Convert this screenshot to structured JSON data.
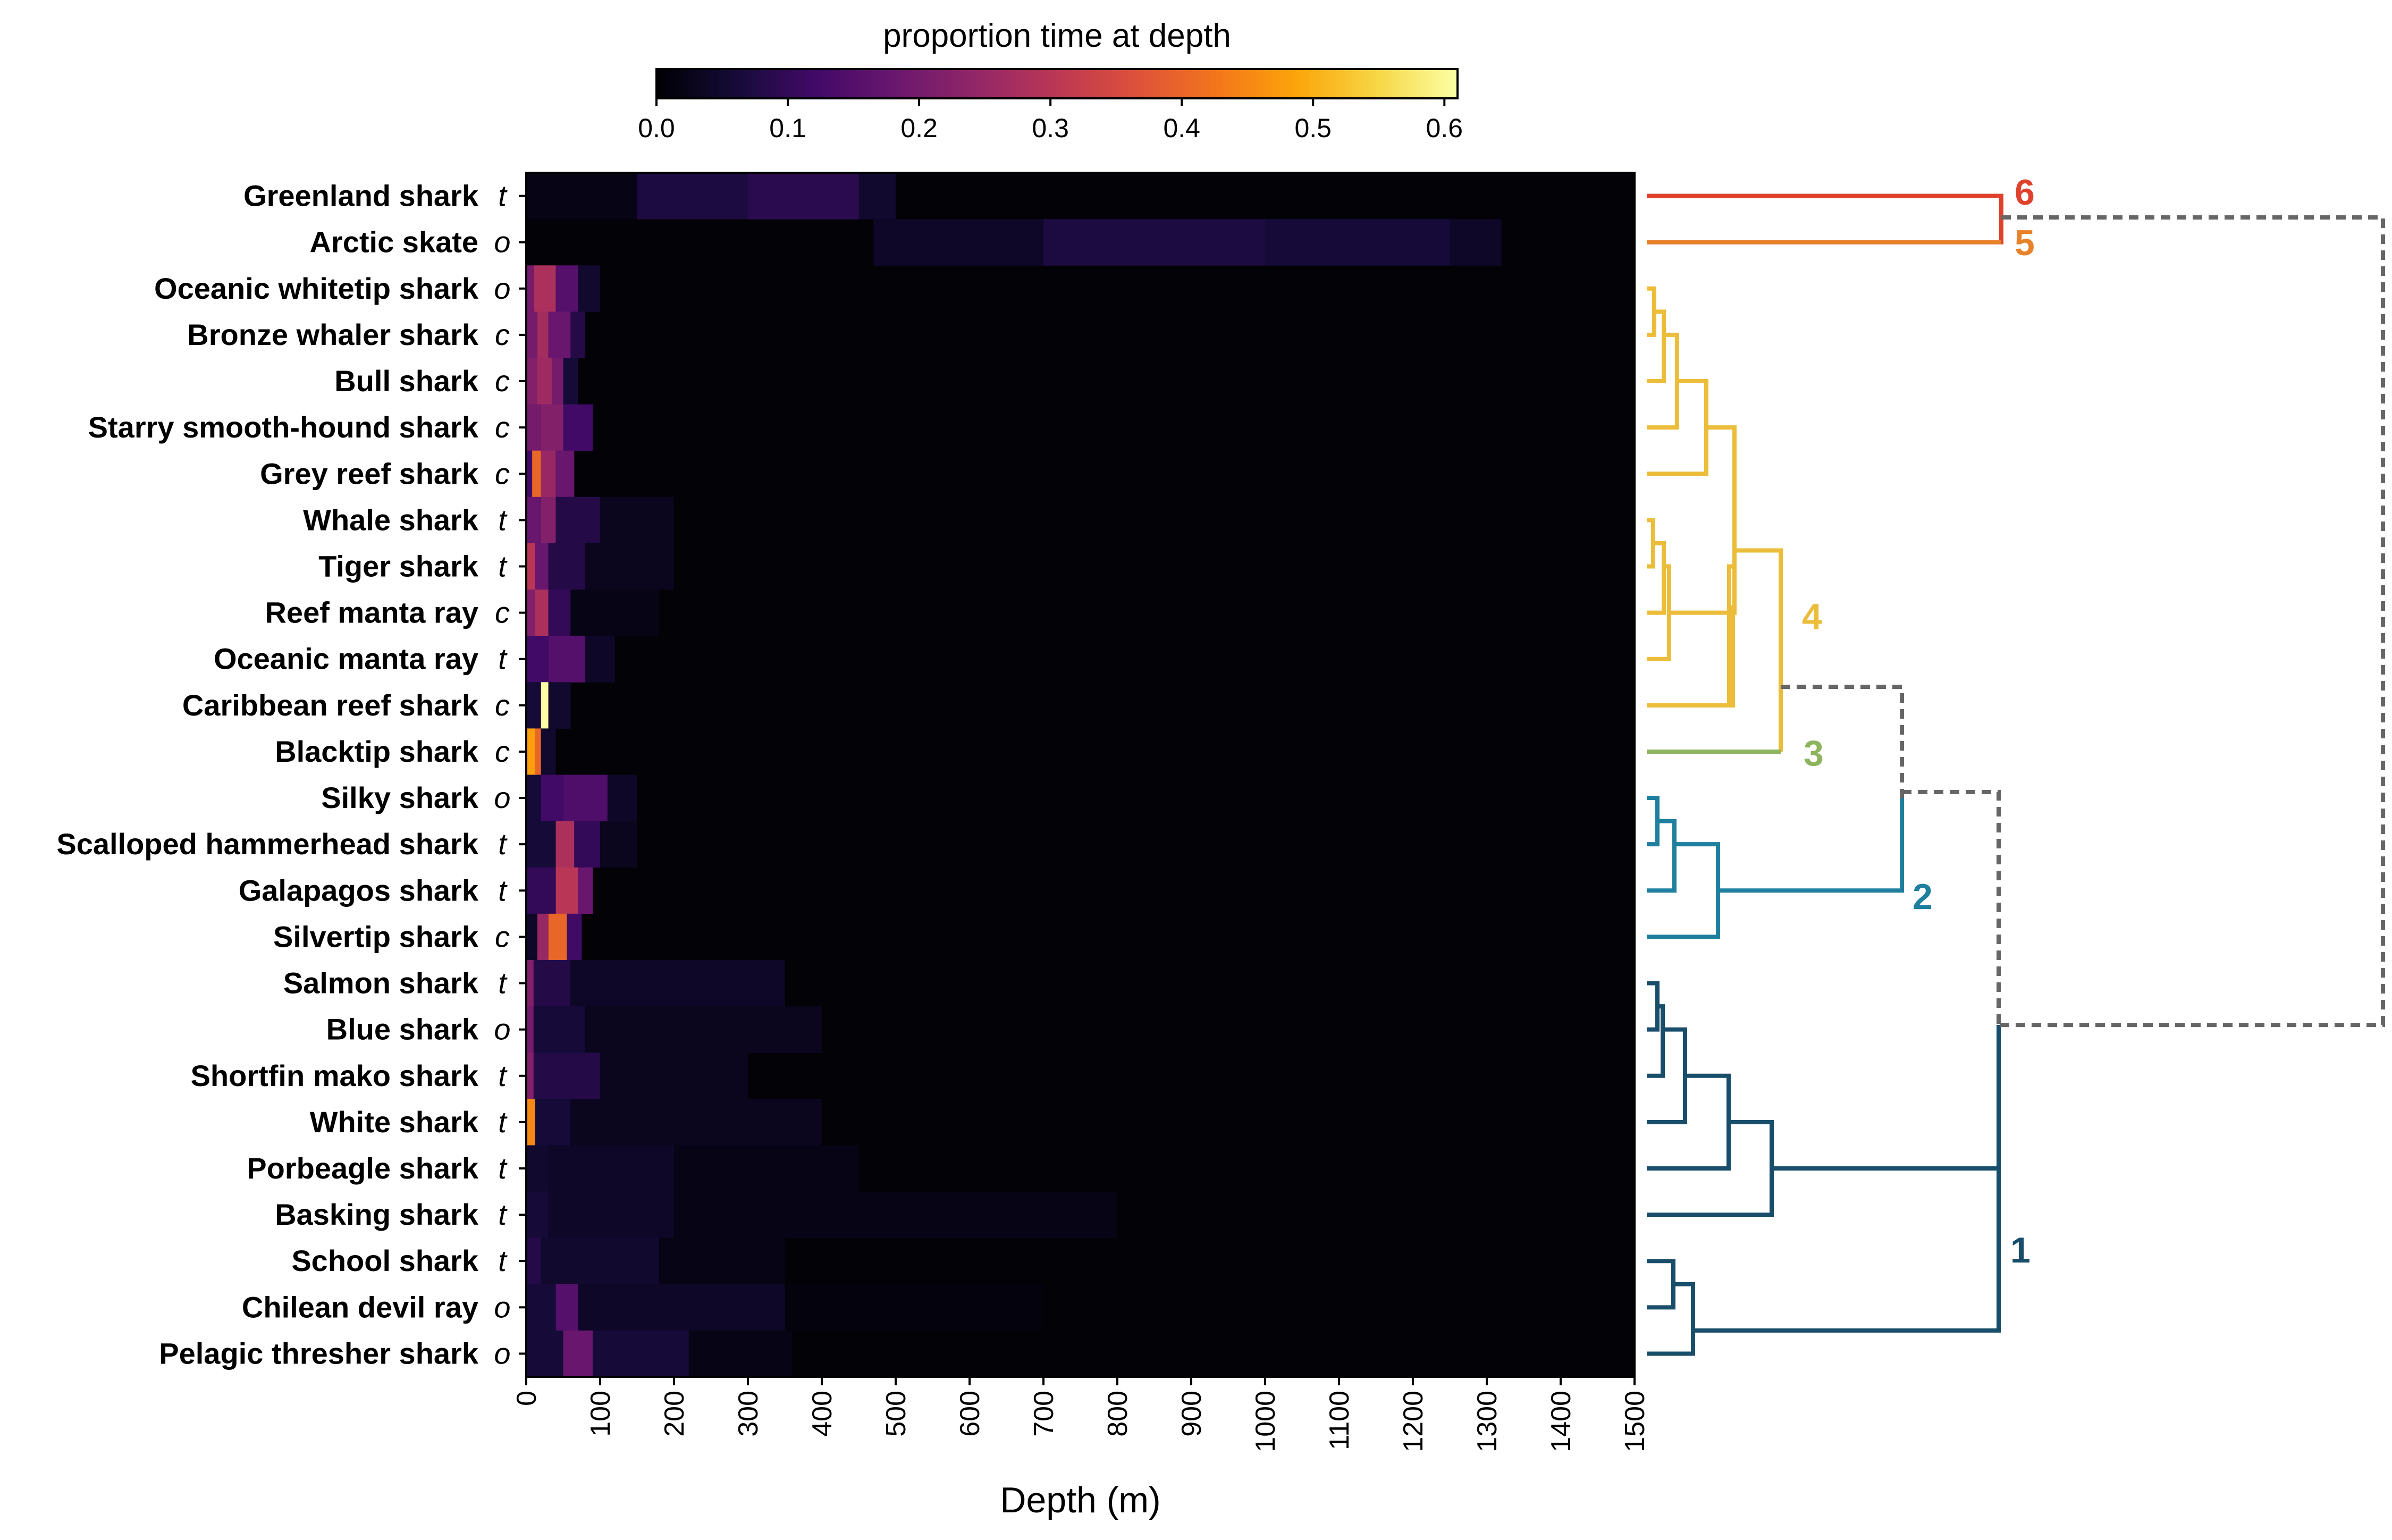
{
  "chart_data": {
    "type": "heatmap",
    "xlabel": "Depth (m)",
    "xlim": [
      0,
      1500
    ],
    "x_ticks": [
      "0",
      "100",
      "200",
      "300",
      "400",
      "500",
      "600",
      "700",
      "800",
      "900",
      "1000",
      "1100",
      "1200",
      "1300",
      "1400",
      "1500"
    ],
    "colorbar": {
      "title": "proportion time at depth",
      "colormap": "inferno",
      "range": [
        0.0,
        0.61
      ],
      "ticks": [
        "0.0",
        "0.1",
        "0.2",
        "0.3",
        "0.4",
        "0.5",
        "0.6"
      ]
    },
    "rows": [
      {
        "species": "Greenland shark",
        "habitat": "t",
        "cluster": 6,
        "segments": [
          [
            0,
            150,
            0.02
          ],
          [
            150,
            300,
            0.07
          ],
          [
            300,
            450,
            0.09
          ],
          [
            450,
            500,
            0.05
          ]
        ]
      },
      {
        "species": "Arctic skate",
        "habitat": "o",
        "cluster": 5,
        "segments": [
          [
            470,
            700,
            0.04
          ],
          [
            700,
            1000,
            0.07
          ],
          [
            1000,
            1250,
            0.06
          ],
          [
            1250,
            1320,
            0.04
          ]
        ]
      },
      {
        "species": "Oceanic whitetip shark",
        "habitat": "o",
        "cluster": 4,
        "segments": [
          [
            0,
            10,
            0.2
          ],
          [
            10,
            40,
            0.28
          ],
          [
            40,
            70,
            0.15
          ],
          [
            70,
            100,
            0.05
          ]
        ]
      },
      {
        "species": "Bronze whaler shark",
        "habitat": "c",
        "cluster": 4,
        "segments": [
          [
            0,
            15,
            0.2
          ],
          [
            15,
            30,
            0.27
          ],
          [
            30,
            60,
            0.18
          ],
          [
            60,
            80,
            0.08
          ]
        ]
      },
      {
        "species": "Bull shark",
        "habitat": "c",
        "cluster": 4,
        "segments": [
          [
            0,
            15,
            0.22
          ],
          [
            15,
            35,
            0.26
          ],
          [
            35,
            50,
            0.2
          ],
          [
            50,
            70,
            0.06
          ]
        ]
      },
      {
        "species": "Starry smooth-hound shark",
        "habitat": "c",
        "cluster": 4,
        "segments": [
          [
            0,
            20,
            0.2
          ],
          [
            20,
            50,
            0.22
          ],
          [
            50,
            90,
            0.12
          ]
        ]
      },
      {
        "species": "Grey reef shark",
        "habitat": "c",
        "cluster": 4,
        "segments": [
          [
            0,
            8,
            0.12
          ],
          [
            8,
            20,
            0.4
          ],
          [
            20,
            40,
            0.25
          ],
          [
            40,
            65,
            0.18
          ]
        ]
      },
      {
        "species": "Whale shark",
        "habitat": "t",
        "cluster": 4,
        "segments": [
          [
            0,
            20,
            0.18
          ],
          [
            20,
            40,
            0.22
          ],
          [
            40,
            100,
            0.08
          ],
          [
            100,
            200,
            0.03
          ]
        ]
      },
      {
        "species": "Tiger shark",
        "habitat": "t",
        "cluster": 4,
        "segments": [
          [
            0,
            12,
            0.3
          ],
          [
            12,
            30,
            0.18
          ],
          [
            30,
            80,
            0.08
          ],
          [
            80,
            200,
            0.03
          ]
        ]
      },
      {
        "species": "Reef manta ray",
        "habitat": "c",
        "cluster": 4,
        "segments": [
          [
            0,
            12,
            0.22
          ],
          [
            12,
            30,
            0.28
          ],
          [
            30,
            60,
            0.1
          ],
          [
            60,
            180,
            0.02
          ]
        ]
      },
      {
        "species": "Oceanic manta ray",
        "habitat": "t",
        "cluster": 4,
        "segments": [
          [
            0,
            30,
            0.12
          ],
          [
            30,
            80,
            0.15
          ],
          [
            80,
            120,
            0.04
          ]
        ]
      },
      {
        "species": "Caribbean reef shark",
        "habitat": "c",
        "cluster": 4,
        "segments": [
          [
            0,
            20,
            0.06
          ],
          [
            20,
            30,
            0.61
          ],
          [
            30,
            60,
            0.05
          ]
        ]
      },
      {
        "species": "Blacktip shark",
        "habitat": "c",
        "cluster": 3,
        "segments": [
          [
            0,
            12,
            0.48
          ],
          [
            12,
            20,
            0.4
          ],
          [
            20,
            40,
            0.05
          ]
        ]
      },
      {
        "species": "Silky shark",
        "habitat": "o",
        "cluster": 2,
        "segments": [
          [
            0,
            20,
            0.06
          ],
          [
            20,
            50,
            0.12
          ],
          [
            50,
            110,
            0.14
          ],
          [
            110,
            150,
            0.04
          ]
        ]
      },
      {
        "species": "Scalloped hammerhead shark",
        "habitat": "t",
        "cluster": 2,
        "segments": [
          [
            0,
            40,
            0.06
          ],
          [
            40,
            65,
            0.28
          ],
          [
            65,
            100,
            0.1
          ],
          [
            100,
            150,
            0.03
          ]
        ]
      },
      {
        "species": "Galapagos shark",
        "habitat": "t",
        "cluster": 2,
        "segments": [
          [
            0,
            40,
            0.1
          ],
          [
            40,
            70,
            0.3
          ],
          [
            70,
            90,
            0.18
          ]
        ]
      },
      {
        "species": "Silvertip shark",
        "habitat": "c",
        "cluster": 2,
        "segments": [
          [
            0,
            15,
            0.04
          ],
          [
            15,
            30,
            0.25
          ],
          [
            30,
            55,
            0.4
          ],
          [
            55,
            75,
            0.12
          ]
        ]
      },
      {
        "species": "Salmon shark",
        "habitat": "t",
        "cluster": 1,
        "segments": [
          [
            0,
            10,
            0.22
          ],
          [
            10,
            60,
            0.08
          ],
          [
            60,
            350,
            0.04
          ]
        ]
      },
      {
        "species": "Blue shark",
        "habitat": "o",
        "cluster": 1,
        "segments": [
          [
            0,
            10,
            0.2
          ],
          [
            10,
            80,
            0.06
          ],
          [
            80,
            400,
            0.03
          ]
        ]
      },
      {
        "species": "Shortfin mako shark",
        "habitat": "t",
        "cluster": 1,
        "segments": [
          [
            0,
            10,
            0.22
          ],
          [
            10,
            100,
            0.08
          ],
          [
            100,
            300,
            0.03
          ]
        ]
      },
      {
        "species": "White shark",
        "habitat": "t",
        "cluster": 1,
        "segments": [
          [
            0,
            12,
            0.45
          ],
          [
            12,
            60,
            0.06
          ],
          [
            60,
            400,
            0.03
          ]
        ]
      },
      {
        "species": "Porbeagle shark",
        "habitat": "t",
        "cluster": 1,
        "segments": [
          [
            0,
            30,
            0.05
          ],
          [
            30,
            200,
            0.04
          ],
          [
            200,
            450,
            0.02
          ]
        ]
      },
      {
        "species": "Basking shark",
        "habitat": "t",
        "cluster": 1,
        "segments": [
          [
            0,
            30,
            0.06
          ],
          [
            30,
            200,
            0.04
          ],
          [
            200,
            800,
            0.02
          ]
        ]
      },
      {
        "species": "School shark",
        "habitat": "t",
        "cluster": 1,
        "segments": [
          [
            0,
            20,
            0.08
          ],
          [
            20,
            180,
            0.05
          ],
          [
            180,
            350,
            0.02
          ]
        ]
      },
      {
        "species": "Chilean devil ray",
        "habitat": "o",
        "cluster": 1,
        "segments": [
          [
            0,
            40,
            0.06
          ],
          [
            40,
            70,
            0.15
          ],
          [
            70,
            350,
            0.04
          ],
          [
            350,
            700,
            0.01
          ]
        ]
      },
      {
        "species": "Pelagic thresher shark",
        "habitat": "o",
        "cluster": 1,
        "segments": [
          [
            0,
            50,
            0.06
          ],
          [
            50,
            90,
            0.18
          ],
          [
            90,
            220,
            0.06
          ],
          [
            220,
            360,
            0.02
          ]
        ]
      }
    ],
    "dendrogram": {
      "clusters": [
        {
          "label": "6",
          "color": "#e0412c"
        },
        {
          "label": "5",
          "color": "#e8822a"
        },
        {
          "label": "4",
          "color": "#ebbd3a"
        },
        {
          "label": "3",
          "color": "#8fb45f"
        },
        {
          "label": "2",
          "color": "#1f7f9e"
        },
        {
          "label": "1",
          "color": "#194e6b"
        }
      ],
      "link_color": "#666666"
    }
  }
}
